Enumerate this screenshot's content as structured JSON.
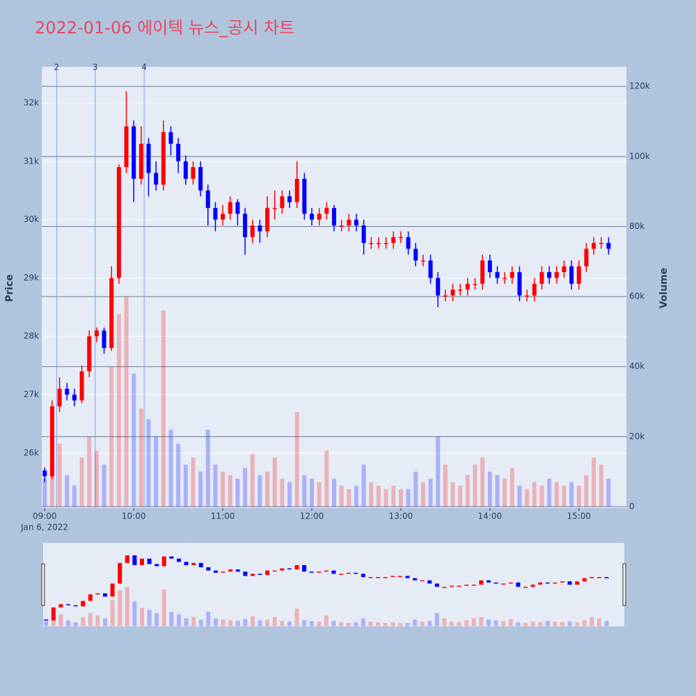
{
  "chart_data": {
    "type": "candlestick",
    "title": "2022-01-06 에이텍 뉴스_공시 차트",
    "y_label": "Price",
    "y2_label": "Volume",
    "x": [
      "2022-01-06 09:00",
      "2022-01-06 09:05",
      "2022-01-06 09:10",
      "2022-01-06 09:15",
      "2022-01-06 09:20",
      "2022-01-06 09:25",
      "2022-01-06 09:30",
      "2022-01-06 09:35",
      "2022-01-06 09:40",
      "2022-01-06 09:45",
      "2022-01-06 09:50",
      "2022-01-06 09:55",
      "2022-01-06 10:00",
      "2022-01-06 10:05",
      "2022-01-06 10:10",
      "2022-01-06 10:15",
      "2022-01-06 10:20",
      "2022-01-06 10:25",
      "2022-01-06 10:30",
      "2022-01-06 10:35",
      "2022-01-06 10:40",
      "2022-01-06 10:45",
      "2022-01-06 10:50",
      "2022-01-06 10:55",
      "2022-01-06 11:00",
      "2022-01-06 11:05",
      "2022-01-06 11:10",
      "2022-01-06 11:15",
      "2022-01-06 11:20",
      "2022-01-06 11:25",
      "2022-01-06 11:30",
      "2022-01-06 11:35",
      "2022-01-06 11:40",
      "2022-01-06 11:45",
      "2022-01-06 11:50",
      "2022-01-06 11:55",
      "2022-01-06 12:00",
      "2022-01-06 12:05",
      "2022-01-06 12:10",
      "2022-01-06 12:15",
      "2022-01-06 12:20",
      "2022-01-06 12:25",
      "2022-01-06 12:30",
      "2022-01-06 12:35",
      "2022-01-06 12:40",
      "2022-01-06 12:45",
      "2022-01-06 12:50",
      "2022-01-06 12:55",
      "2022-01-06 13:00",
      "2022-01-06 13:05",
      "2022-01-06 13:10",
      "2022-01-06 13:15",
      "2022-01-06 13:20",
      "2022-01-06 13:25",
      "2022-01-06 13:30",
      "2022-01-06 13:35",
      "2022-01-06 13:40",
      "2022-01-06 13:45",
      "2022-01-06 13:50",
      "2022-01-06 13:55",
      "2022-01-06 14:00",
      "2022-01-06 14:05",
      "2022-01-06 14:10",
      "2022-01-06 14:15",
      "2022-01-06 14:20",
      "2022-01-06 14:25",
      "2022-01-06 14:30",
      "2022-01-06 14:35",
      "2022-01-06 14:40",
      "2022-01-06 14:45",
      "2022-01-06 14:50",
      "2022-01-06 14:55",
      "2022-01-06 15:00",
      "2022-01-06 15:05",
      "2022-01-06 15:10",
      "2022-01-06 15:15",
      "2022-01-06 15:20"
    ],
    "open": [
      25700,
      25600,
      26800,
      27100,
      27000,
      26900,
      27400,
      28000,
      28100,
      27800,
      29000,
      30900,
      31600,
      30700,
      31300,
      30800,
      30600,
      31500,
      31300,
      31000,
      30700,
      30900,
      30500,
      30200,
      30000,
      30100,
      30300,
      30100,
      29700,
      29900,
      29800,
      30200,
      30200,
      30400,
      30300,
      30700,
      30100,
      30000,
      30100,
      30200,
      29900,
      29900,
      30000,
      29900,
      29600,
      29600,
      29600,
      29600,
      29700,
      29700,
      29500,
      29300,
      29300,
      29000,
      28700,
      28700,
      28800,
      28800,
      28900,
      28900,
      29300,
      29100,
      29000,
      29000,
      29100,
      28700,
      28700,
      28900,
      29100,
      29000,
      29100,
      29200,
      28900,
      29200,
      29500,
      29600,
      29600
    ],
    "high": [
      25750,
      26900,
      27300,
      27200,
      27100,
      27500,
      28100,
      28150,
      28150,
      29200,
      30950,
      32200,
      31700,
      31600,
      31400,
      31000,
      31700,
      31600,
      31400,
      31100,
      31000,
      31000,
      30600,
      30300,
      30250,
      30400,
      30350,
      30200,
      30000,
      30000,
      30400,
      30500,
      30500,
      30500,
      31000,
      30800,
      30200,
      30200,
      30300,
      30250,
      30000,
      30100,
      30100,
      30000,
      29700,
      29700,
      29700,
      29800,
      29800,
      29800,
      29600,
      29400,
      29400,
      29100,
      28800,
      28900,
      28900,
      29000,
      29000,
      29400,
      29400,
      29200,
      29100,
      29200,
      29200,
      28800,
      29000,
      29200,
      29200,
      29200,
      29300,
      29300,
      29300,
      29600,
      29700,
      29700,
      29700
    ],
    "low": [
      25500,
      25550,
      26700,
      26900,
      26800,
      26850,
      27300,
      27900,
      27700,
      27750,
      28900,
      30800,
      30300,
      30600,
      30400,
      30500,
      30500,
      31100,
      30800,
      30600,
      30600,
      30400,
      29900,
      29800,
      29900,
      30000,
      29900,
      29400,
      29600,
      29600,
      29700,
      30000,
      30100,
      30200,
      30200,
      30000,
      29900,
      29900,
      30000,
      29800,
      29800,
      29800,
      29800,
      29400,
      29500,
      29500,
      29500,
      29500,
      29600,
      29400,
      29200,
      29200,
      28900,
      28500,
      28600,
      28600,
      28700,
      28700,
      28800,
      28800,
      29000,
      28900,
      28900,
      28900,
      28600,
      28600,
      28600,
      28800,
      28900,
      28900,
      29000,
      28800,
      28800,
      29100,
      29400,
      29500,
      29400
    ],
    "close": [
      25600,
      26800,
      27100,
      27000,
      26900,
      27400,
      28000,
      28100,
      27800,
      29000,
      30900,
      31600,
      30700,
      31300,
      30800,
      30600,
      31500,
      31300,
      31000,
      30700,
      30900,
      30500,
      30200,
      30000,
      30100,
      30300,
      30100,
      29700,
      29900,
      29800,
      30200,
      30200,
      30400,
      30300,
      30700,
      30100,
      30000,
      30100,
      30200,
      29900,
      29900,
      30000,
      29900,
      29600,
      29600,
      29600,
      29600,
      29700,
      29700,
      29500,
      29300,
      29300,
      29000,
      28700,
      28700,
      28800,
      28800,
      28900,
      28900,
      29300,
      29100,
      29000,
      29000,
      29100,
      28700,
      28700,
      28900,
      29100,
      29000,
      29100,
      29200,
      28900,
      29200,
      29500,
      29600,
      29600,
      29500
    ],
    "volume": [
      8000,
      12000,
      18000,
      9000,
      6000,
      14000,
      20000,
      16000,
      12000,
      40000,
      55000,
      60000,
      38000,
      28000,
      25000,
      20000,
      56000,
      22000,
      18000,
      12000,
      14000,
      10000,
      22000,
      12000,
      10000,
      9000,
      8000,
      11000,
      15000,
      9000,
      10000,
      14000,
      8000,
      7000,
      27000,
      9000,
      8000,
      7000,
      16000,
      8000,
      6000,
      5000,
      6000,
      12000,
      7000,
      6000,
      5000,
      6000,
      5000,
      5000,
      10000,
      7000,
      8000,
      20000,
      12000,
      7000,
      6000,
      9000,
      12000,
      14000,
      10000,
      9000,
      8000,
      11000,
      6000,
      5000,
      7000,
      6000,
      8000,
      7000,
      6000,
      7000,
      6000,
      9000,
      14000,
      12000,
      8000
    ],
    "colors": {
      "up": "#ff0000",
      "down": "#0000ff"
    },
    "xlim": [
      "2022-01-06 08:58",
      "2022-01-06 15:32"
    ],
    "xticks": [
      {
        "value": "2022-01-06 09:00",
        "label": "09:00"
      },
      {
        "value": "2022-01-06 10:00",
        "label": "10:00"
      },
      {
        "value": "2022-01-06 11:00",
        "label": "11:00"
      },
      {
        "value": "2022-01-06 12:00",
        "label": "12:00"
      },
      {
        "value": "2022-01-06 13:00",
        "label": "13:00"
      },
      {
        "value": "2022-01-06 14:00",
        "label": "14:00"
      },
      {
        "value": "2022-01-06 15:00",
        "label": "15:00"
      }
    ],
    "x_date_label": "Jan 6, 2022",
    "ylim": [
      25055,
      32620
    ],
    "yticks": [
      {
        "value": 26000,
        "label": "26k"
      },
      {
        "value": 27000,
        "label": "27k"
      },
      {
        "value": 28000,
        "label": "28k"
      },
      {
        "value": 29000,
        "label": "29k"
      },
      {
        "value": 30000,
        "label": "30k"
      },
      {
        "value": 31000,
        "label": "31k"
      },
      {
        "value": 32000,
        "label": "32k"
      }
    ],
    "y2lim": [
      -400,
      125600
    ],
    "y2ticks": [
      0,
      {
        "value": 20000,
        "label": "20k"
      },
      {
        "value": 40000,
        "label": "40k"
      },
      {
        "value": 60000,
        "label": "60k"
      },
      {
        "value": 80000,
        "label": "80k"
      },
      {
        "value": 100000,
        "label": "100k"
      },
      {
        "value": 120000,
        "label": "120k"
      }
    ],
    "annotations": [
      {
        "x": "2022-01-06 09:08",
        "text": "2"
      },
      {
        "x": "2022-01-06 09:34",
        "text": "3"
      },
      {
        "x": "2022-01-06 10:07",
        "text": "4"
      }
    ],
    "grid": true,
    "range_slider": true
  }
}
